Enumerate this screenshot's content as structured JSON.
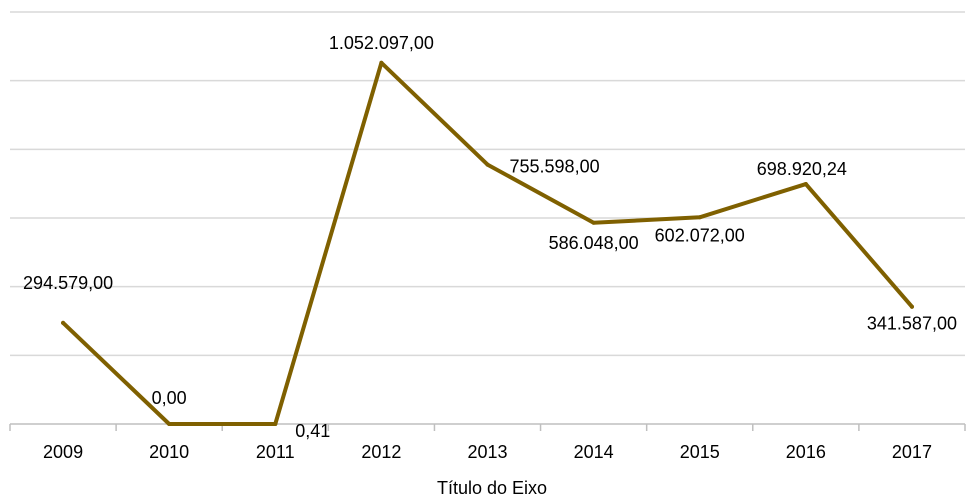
{
  "chart_data": {
    "type": "line",
    "categories": [
      "2009",
      "2010",
      "2011",
      "2012",
      "2013",
      "2014",
      "2015",
      "2016",
      "2017"
    ],
    "series": [
      {
        "values": [
          294579.0,
          0.0,
          0.41,
          1052097.0,
          755598.0,
          586048.0,
          602072.0,
          698920.24,
          341587.0
        ],
        "data_labels": [
          "294.579,00",
          "0,00",
          "0,41",
          "1.052.097,00",
          "755.598,00",
          "586.048,00",
          "602.072,00",
          "698.920,24",
          "341.587,00"
        ],
        "color": "#7F6000"
      }
    ],
    "title": "",
    "xlabel": "Título do Eixo",
    "ylabel": "",
    "ylim": [
      0,
      1200000
    ],
    "y_gridlines": [
      0,
      200000,
      400000,
      600000,
      800000,
      1000000,
      1200000
    ],
    "y_tick_labels_visible": false,
    "grid": true,
    "legend": "none",
    "colors": {
      "line": "#7F6000",
      "grid": "#D9D9D9",
      "axis": "#BFBFBF",
      "text": "#000000"
    }
  }
}
